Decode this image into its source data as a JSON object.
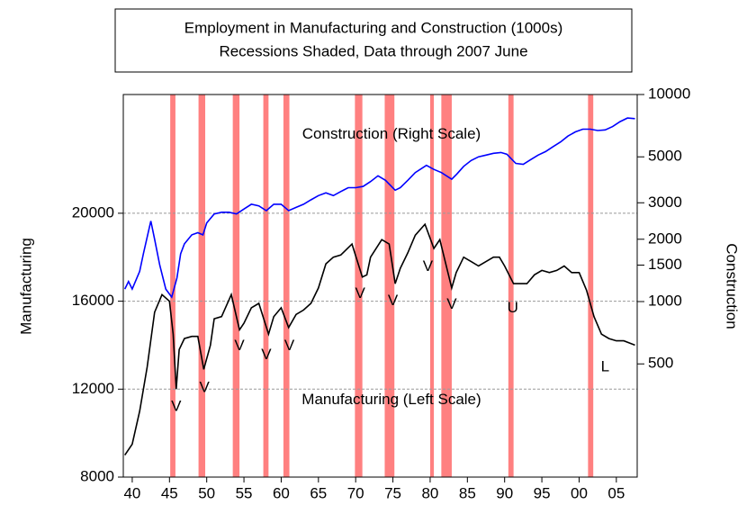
{
  "chart_data": {
    "type": "line",
    "title": "Employment in Manufacturing and Construction (1000s)",
    "subtitle": "Recessions Shaded, Data through 2007 June",
    "ylabel": "Manufacturing",
    "y2label": "Construction",
    "xlim": [
      1938.8,
      2007.8
    ],
    "xticks": [
      {
        "value": 1940,
        "label": "40"
      },
      {
        "value": 1945,
        "label": "45"
      },
      {
        "value": 1950,
        "label": "50"
      },
      {
        "value": 1955,
        "label": "55"
      },
      {
        "value": 1960,
        "label": "60"
      },
      {
        "value": 1965,
        "label": "65"
      },
      {
        "value": 1970,
        "label": "70"
      },
      {
        "value": 1975,
        "label": "75"
      },
      {
        "value": 1980,
        "label": "80"
      },
      {
        "value": 1985,
        "label": "85"
      },
      {
        "value": 1990,
        "label": "90"
      },
      {
        "value": 1995,
        "label": "95"
      },
      {
        "value": 2000,
        "label": "00"
      },
      {
        "value": 2005,
        "label": "05"
      }
    ],
    "ylim": [
      8000,
      25400
    ],
    "yticks": [
      8000,
      12000,
      16000,
      20000
    ],
    "y2lim": [
      142,
      10000
    ],
    "y2scale": "log",
    "y2ticks": [
      500,
      1000,
      1500,
      2000,
      3000,
      5000,
      10000
    ],
    "grid": true,
    "recession_color": "#ff8080",
    "recessions": [
      [
        1945.1,
        1945.8
      ],
      [
        1948.9,
        1949.8
      ],
      [
        1953.5,
        1954.4
      ],
      [
        1957.6,
        1958.3
      ],
      [
        1960.3,
        1961.1
      ],
      [
        1969.9,
        1970.9
      ],
      [
        1973.9,
        1975.2
      ],
      [
        1980.0,
        1980.5
      ],
      [
        1981.5,
        1982.9
      ],
      [
        1990.5,
        1991.2
      ],
      [
        2001.2,
        2001.9
      ]
    ],
    "series": [
      {
        "name": "Construction (Right Scale)",
        "color": "#0000ff",
        "axis": "y2",
        "x": [
          1939,
          1939.5,
          1940,
          1941,
          1941.5,
          1942.5,
          1943,
          1943.7,
          1944.5,
          1945.3,
          1946,
          1946.5,
          1947,
          1948,
          1948.8,
          1949.5,
          1950,
          1951,
          1952,
          1953,
          1954,
          1955,
          1956,
          1957,
          1958,
          1959,
          1960,
          1961,
          1962,
          1963,
          1964,
          1965,
          1966,
          1967,
          1968,
          1969,
          1970,
          1971,
          1972,
          1973,
          1974,
          1975.3,
          1976,
          1977,
          1978,
          1979.5,
          1980.5,
          1981.5,
          1982.9,
          1983.5,
          1984.5,
          1985.5,
          1986.5,
          1987.5,
          1988.5,
          1989.5,
          1990.3,
          1991.5,
          1992.5,
          1993.5,
          1994.5,
          1995.5,
          1996.5,
          1997.5,
          1998.5,
          1999.5,
          2000.5,
          2001.5,
          2002.5,
          2003.5,
          2004.5,
          2005.5,
          2006.5,
          2007.5
        ],
        "values": [
          1150,
          1250,
          1150,
          1400,
          1700,
          2450,
          2000,
          1500,
          1150,
          1050,
          1300,
          1700,
          1900,
          2100,
          2150,
          2100,
          2400,
          2650,
          2700,
          2700,
          2650,
          2800,
          2950,
          2900,
          2750,
          2950,
          2950,
          2750,
          2850,
          2950,
          3100,
          3250,
          3350,
          3250,
          3400,
          3550,
          3550,
          3600,
          3800,
          4050,
          3850,
          3450,
          3550,
          3850,
          4200,
          4550,
          4350,
          4200,
          3900,
          4100,
          4500,
          4800,
          5000,
          5100,
          5200,
          5250,
          5150,
          4650,
          4600,
          4850,
          5100,
          5300,
          5600,
          5900,
          6300,
          6600,
          6800,
          6800,
          6700,
          6750,
          7000,
          7400,
          7700,
          7650
        ]
      },
      {
        "name": "Manufacturing (Left Scale)",
        "color": "#000000",
        "axis": "y",
        "x": [
          1939,
          1940,
          1941,
          1942,
          1943,
          1944,
          1945,
          1945.5,
          1945.9,
          1946.3,
          1947,
          1948,
          1948.8,
          1949.6,
          1950.5,
          1951,
          1952,
          1953.3,
          1954.4,
          1955,
          1956,
          1957,
          1958.3,
          1959,
          1960,
          1961,
          1962,
          1963,
          1964,
          1965,
          1966,
          1967,
          1968,
          1969.5,
          1970.9,
          1971.5,
          1972,
          1973.5,
          1974.5,
          1975.3,
          1976,
          1977,
          1978,
          1979.3,
          1980.5,
          1981.3,
          1982.9,
          1983.5,
          1984.5,
          1985.5,
          1986.5,
          1987.5,
          1988.5,
          1989.3,
          1990,
          1991.2,
          1992,
          1993,
          1994,
          1995,
          1996,
          1997,
          1998,
          1999,
          2000,
          2001,
          2002,
          2003,
          2004,
          2005,
          2006,
          2007.5
        ],
        "values": [
          9000,
          9500,
          11000,
          13000,
          15500,
          16300,
          16000,
          14500,
          12000,
          13800,
          14300,
          14400,
          14400,
          12900,
          14000,
          15200,
          15300,
          16300,
          14700,
          15000,
          15700,
          15900,
          14500,
          15300,
          15700,
          14800,
          15400,
          15600,
          15900,
          16600,
          17700,
          18000,
          18100,
          18600,
          17100,
          17200,
          18000,
          18800,
          18600,
          16800,
          17500,
          18200,
          19000,
          19500,
          18400,
          18800,
          16600,
          17300,
          18000,
          17800,
          17600,
          17800,
          18000,
          18000,
          17600,
          16800,
          16800,
          16800,
          17200,
          17400,
          17300,
          17400,
          17600,
          17300,
          17300,
          16500,
          15300,
          14500,
          14300,
          14200,
          14200,
          14000
        ]
      }
    ],
    "recession_labels": [
      {
        "label": "V",
        "x": 1945.9,
        "y": 11200
      },
      {
        "label": "V",
        "x": 1949.7,
        "y": 12060
      },
      {
        "label": "V",
        "x": 1954.4,
        "y": 13950
      },
      {
        "label": "V",
        "x": 1958,
        "y": 13540
      },
      {
        "label": "V",
        "x": 1961.1,
        "y": 13950
      },
      {
        "label": "V",
        "x": 1970.6,
        "y": 16330
      },
      {
        "label": "V",
        "x": 1975,
        "y": 16000
      },
      {
        "label": "V",
        "x": 1979.7,
        "y": 17560
      },
      {
        "label": "V",
        "x": 1982.9,
        "y": 15840
      },
      {
        "label": "U",
        "x": 1991.1,
        "y": 15670
      },
      {
        "label": "L",
        "x": 2003.5,
        "y": 13000
      }
    ]
  }
}
